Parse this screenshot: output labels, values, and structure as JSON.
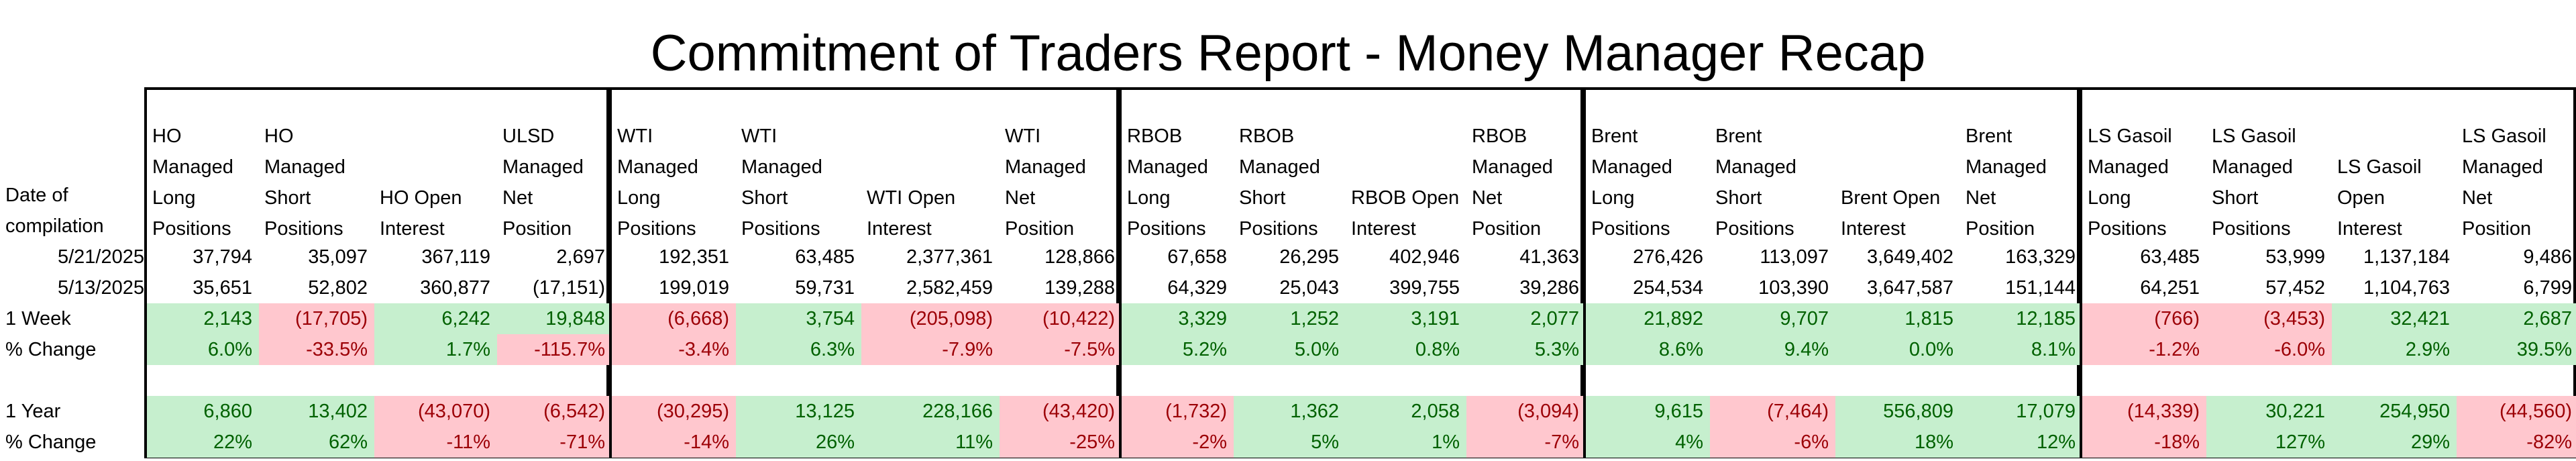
{
  "title": "Commitment of Traders Report - Money Manager Recap",
  "colors": {
    "positive_bg": "#c6efce",
    "positive_text": "#006100",
    "negative_bg": "#ffc7ce",
    "negative_text": "#9c0006"
  },
  "row_labels": {
    "date_header": [
      "Date of",
      "compilation"
    ],
    "date1": "5/21/2025",
    "date2": "5/13/2025",
    "week": "1 Week",
    "week_pct": "% Change",
    "year": "1 Year",
    "year_pct": "% Change"
  },
  "blocks": [
    {
      "id": "ho",
      "columns": [
        {
          "header": [
            "HO",
            "Managed",
            "Long",
            "Positions"
          ],
          "date1": "37,794",
          "date2": "35,651",
          "week": "2,143",
          "week_pct": "6.0%",
          "year": "6,860",
          "year_pct": "22%",
          "week_sign": "pos",
          "year_sign": "pos"
        },
        {
          "header": [
            "HO",
            "Managed",
            "Short",
            "Positions"
          ],
          "date1": "35,097",
          "date2": "52,802",
          "week": "(17,705)",
          "week_pct": "-33.5%",
          "year": "13,402",
          "year_pct": "62%",
          "week_sign": "neg",
          "year_sign": "pos"
        },
        {
          "header": [
            "HO Open",
            "Interest"
          ],
          "date1": "367,119",
          "date2": "360,877",
          "week": "6,242",
          "week_pct": "1.7%",
          "year": "(43,070)",
          "year_pct": "-11%",
          "week_sign": "pos",
          "year_sign": "neg"
        },
        {
          "header": [
            "ULSD",
            "Managed",
            "Net",
            "Position"
          ],
          "date1": "2,697",
          "date2": "(17,151)",
          "week": "19,848",
          "week_pct": "-115.7%",
          "year": "(6,542)",
          "year_pct": "-71%",
          "week_sign": "pos",
          "week_pct_sign": "neg",
          "year_sign": "neg"
        }
      ]
    },
    {
      "id": "wti",
      "columns": [
        {
          "header": [
            "WTI",
            "Managed",
            "Long",
            "Positions"
          ],
          "date1": "192,351",
          "date2": "199,019",
          "week": "(6,668)",
          "week_pct": "-3.4%",
          "year": "(30,295)",
          "year_pct": "-14%",
          "week_sign": "neg",
          "year_sign": "neg"
        },
        {
          "header": [
            "WTI",
            "Managed",
            "Short",
            "Positions"
          ],
          "date1": "63,485",
          "date2": "59,731",
          "week": "3,754",
          "week_pct": "6.3%",
          "year": "13,125",
          "year_pct": "26%",
          "week_sign": "pos",
          "year_sign": "pos"
        },
        {
          "header": [
            "WTI Open",
            "Interest"
          ],
          "date1": "2,377,361",
          "date2": "2,582,459",
          "week": "(205,098)",
          "week_pct": "-7.9%",
          "year": "228,166",
          "year_pct": "11%",
          "week_sign": "neg",
          "year_sign": "pos"
        },
        {
          "header": [
            "WTI",
            "Managed",
            "Net",
            "Position"
          ],
          "date1": "128,866",
          "date2": "139,288",
          "week": "(10,422)",
          "week_pct": "-7.5%",
          "year": "(43,420)",
          "year_pct": "-25%",
          "week_sign": "neg",
          "year_sign": "neg"
        }
      ]
    },
    {
      "id": "rbob",
      "columns": [
        {
          "header": [
            "RBOB",
            "Managed",
            "Long",
            "Positions"
          ],
          "date1": "67,658",
          "date2": "64,329",
          "week": "3,329",
          "week_pct": "5.2%",
          "year": "(1,732)",
          "year_pct": "-2%",
          "week_sign": "pos",
          "year_sign": "neg"
        },
        {
          "header": [
            "RBOB",
            "Managed",
            "Short",
            "Positions"
          ],
          "date1": "26,295",
          "date2": "25,043",
          "week": "1,252",
          "week_pct": "5.0%",
          "year": "1,362",
          "year_pct": "5%",
          "week_sign": "pos",
          "year_sign": "pos"
        },
        {
          "header": [
            "RBOB Open",
            "Interest"
          ],
          "date1": "402,946",
          "date2": "399,755",
          "week": "3,191",
          "week_pct": "0.8%",
          "year": "2,058",
          "year_pct": "1%",
          "week_sign": "pos",
          "year_sign": "pos"
        },
        {
          "header": [
            "RBOB",
            "Managed",
            "Net",
            "Position"
          ],
          "date1": "41,363",
          "date2": "39,286",
          "week": "2,077",
          "week_pct": "5.3%",
          "year": "(3,094)",
          "year_pct": "-7%",
          "week_sign": "pos",
          "year_sign": "neg"
        }
      ]
    },
    {
      "id": "brent",
      "columns": [
        {
          "header": [
            "Brent",
            "Managed",
            "Long",
            "Positions"
          ],
          "date1": "276,426",
          "date2": "254,534",
          "week": "21,892",
          "week_pct": "8.6%",
          "year": "9,615",
          "year_pct": "4%",
          "week_sign": "pos",
          "year_sign": "pos"
        },
        {
          "header": [
            "Brent",
            "Managed",
            "Short",
            "Positions"
          ],
          "date1": "113,097",
          "date2": "103,390",
          "week": "9,707",
          "week_pct": "9.4%",
          "year": "(7,464)",
          "year_pct": "-6%",
          "week_sign": "pos",
          "year_sign": "neg"
        },
        {
          "header": [
            "Brent Open",
            "Interest"
          ],
          "date1": "3,649,402",
          "date2": "3,647,587",
          "week": "1,815",
          "week_pct": "0.0%",
          "year": "556,809",
          "year_pct": "18%",
          "week_sign": "pos",
          "year_sign": "pos"
        },
        {
          "header": [
            "Brent",
            "Managed",
            "Net",
            "Position"
          ],
          "date1": "163,329",
          "date2": "151,144",
          "week": "12,185",
          "week_pct": "8.1%",
          "year": "17,079",
          "year_pct": "12%",
          "week_sign": "pos",
          "year_sign": "pos"
        }
      ]
    },
    {
      "id": "gasoil",
      "columns": [
        {
          "header": [
            "LS Gasoil",
            "Managed",
            "Long",
            "Positions"
          ],
          "date1": "63,485",
          "date2": "64,251",
          "week": "(766)",
          "week_pct": "-1.2%",
          "year": "(14,339)",
          "year_pct": "-18%",
          "week_sign": "neg",
          "year_sign": "neg"
        },
        {
          "header": [
            "LS Gasoil",
            "Managed",
            "Short",
            "Positions"
          ],
          "date1": "53,999",
          "date2": "57,452",
          "week": "(3,453)",
          "week_pct": "-6.0%",
          "year": "30,221",
          "year_pct": "127%",
          "week_sign": "neg",
          "year_sign": "pos"
        },
        {
          "header": [
            "LS Gasoil",
            "Open",
            "Interest"
          ],
          "date1": "1,137,184",
          "date2": "1,104,763",
          "week": "32,421",
          "week_pct": "2.9%",
          "year": "254,950",
          "year_pct": "29%",
          "week_sign": "pos",
          "year_sign": "pos"
        },
        {
          "header": [
            "LS Gasoil",
            "Managed",
            "Net",
            "Position"
          ],
          "date1": "9,486",
          "date2": "6,799",
          "week": "2,687",
          "week_pct": "39.5%",
          "year": "(44,560)",
          "year_pct": "-82%",
          "week_sign": "pos",
          "year_sign": "neg"
        }
      ]
    }
  ]
}
